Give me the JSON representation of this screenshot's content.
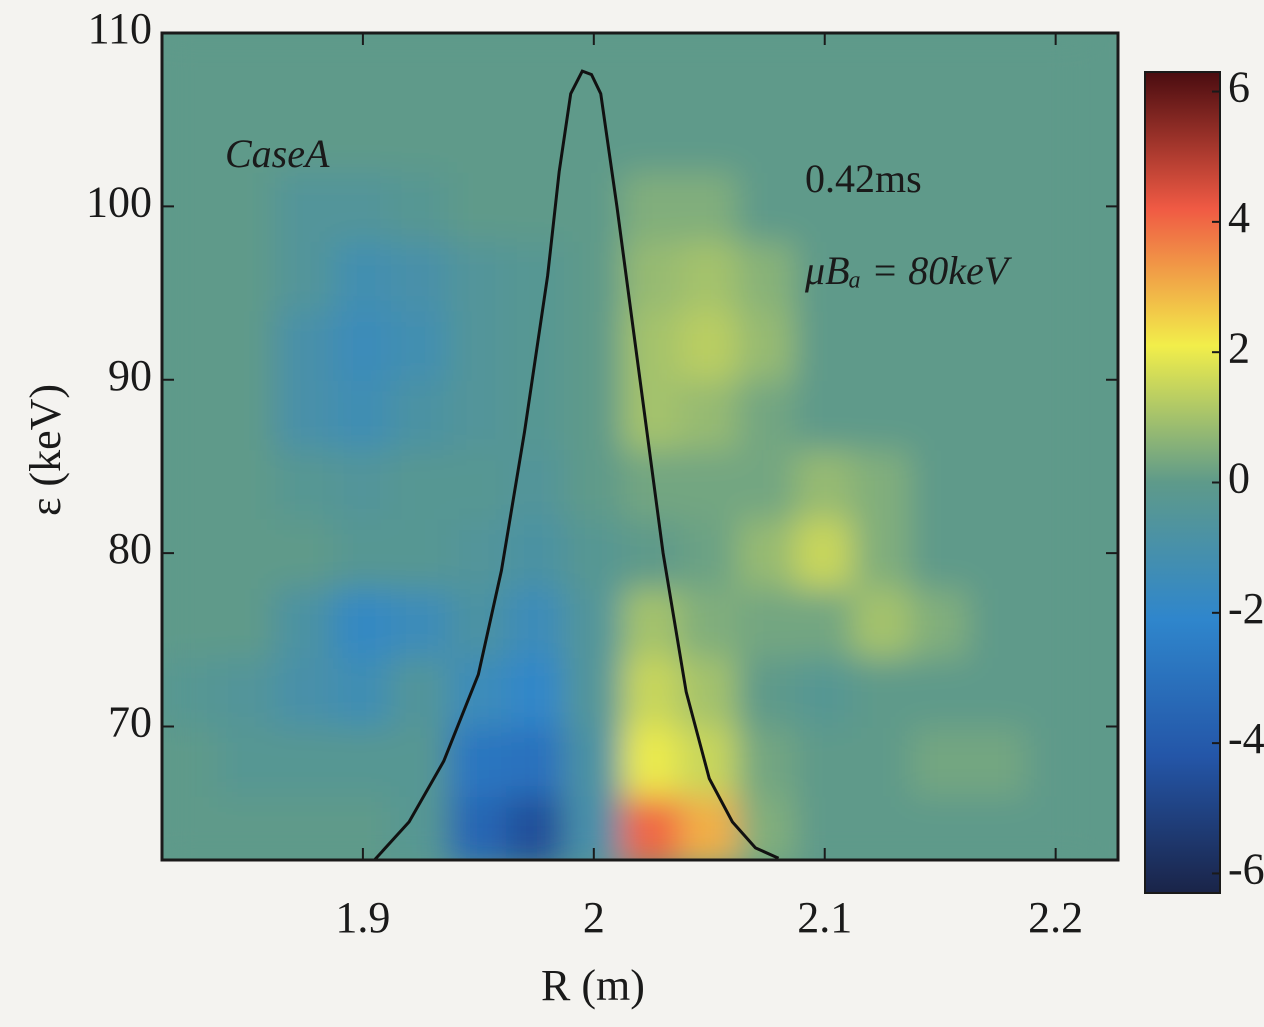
{
  "chart_data": {
    "type": "heatmap",
    "x_label": "R (m)",
    "y_label": "ε (keV)",
    "xlim": [
      1.813,
      2.227
    ],
    "ylim": [
      62.3,
      110
    ],
    "xticks": [
      1.9,
      2,
      2.1,
      2.2
    ],
    "yticks": [
      70,
      80,
      90,
      100,
      110
    ],
    "x": [
      1.825,
      1.85,
      1.875,
      1.9,
      1.925,
      1.95,
      1.975,
      2.0,
      2.025,
      2.05,
      2.075,
      2.1,
      2.125,
      2.15,
      2.175,
      2.2
    ],
    "y": [
      64,
      68,
      72,
      76,
      80,
      84,
      88,
      92,
      96,
      100,
      104,
      108
    ],
    "z": [
      [
        0,
        0,
        0,
        0,
        -0.3,
        -3.5,
        -4.5,
        -1,
        4,
        3,
        0.5,
        0,
        0,
        0,
        0,
        0
      ],
      [
        0,
        -0.3,
        -0.3,
        -0.3,
        -0.3,
        -2.8,
        -3,
        -0.8,
        2,
        1.5,
        0.3,
        0,
        0,
        0.3,
        0.3,
        0
      ],
      [
        -0.3,
        -0.5,
        -1,
        -1.3,
        -0.5,
        -1.5,
        -2,
        -0.5,
        1.5,
        1,
        0,
        -0.3,
        0,
        0,
        0,
        0
      ],
      [
        0,
        0,
        -0.8,
        -1.8,
        -1.5,
        -0.8,
        -1.5,
        -0.5,
        1,
        0.5,
        0.3,
        0.3,
        1,
        0.5,
        0,
        0
      ],
      [
        0,
        0,
        0,
        -0.3,
        -0.3,
        -0.5,
        -0.8,
        -0.3,
        0,
        0.2,
        0.8,
        1.5,
        0.5,
        0,
        0,
        0
      ],
      [
        0,
        0,
        -0.3,
        -0.5,
        -0.3,
        -0.3,
        -0.5,
        0,
        0.3,
        0.3,
        0.3,
        0.8,
        0.5,
        0,
        0,
        0
      ],
      [
        0,
        0,
        -1,
        -1.3,
        -0.8,
        -0.5,
        -0.3,
        0,
        1,
        0.8,
        0.3,
        0,
        0,
        0,
        0,
        0
      ],
      [
        0,
        0,
        -1,
        -1.5,
        -1.2,
        -0.5,
        -0.3,
        0,
        1,
        1.3,
        0.8,
        0,
        0,
        0,
        0,
        0
      ],
      [
        0,
        0,
        -0.5,
        -1.2,
        -1,
        -0.5,
        -0.3,
        0,
        0.8,
        1,
        0.6,
        0,
        0,
        0,
        0,
        0
      ],
      [
        0,
        0,
        -0.5,
        -0.5,
        -0.3,
        0,
        0,
        0,
        0.5,
        0.5,
        0,
        0,
        0,
        0,
        0,
        0
      ],
      [
        0,
        0,
        0,
        0,
        0,
        0,
        0,
        0,
        0,
        0,
        0,
        0,
        0,
        0,
        0,
        0
      ],
      [
        0,
        0,
        0,
        0,
        0,
        0,
        0,
        0,
        0,
        0,
        0,
        0,
        0,
        0,
        0,
        0
      ]
    ],
    "zlim": [
      -6.3,
      6.3
    ],
    "zticks": [
      -6,
      -4,
      -2,
      0,
      2,
      4,
      6
    ],
    "colormap": [
      "#1a2448",
      "#2456a8",
      "#2f86cc",
      "#5e9a8a",
      "#f2ee4a",
      "#f05a44",
      "#4a0c10"
    ],
    "line": {
      "color": "#111111",
      "x": [
        1.905,
        1.92,
        1.935,
        1.95,
        1.96,
        1.97,
        1.98,
        1.985,
        1.99,
        1.995,
        1.999,
        2.003,
        2.01,
        2.02,
        2.03,
        2.04,
        2.05,
        2.06,
        2.07,
        2.08
      ],
      "y": [
        62.3,
        64.5,
        68,
        73,
        79,
        87,
        96,
        102,
        106.5,
        107.8,
        107.6,
        106.5,
        100,
        90,
        80,
        72,
        67,
        64.5,
        63,
        62.4
      ]
    },
    "annotations": [
      "CaseA",
      "0.42ms",
      "μBₐ = 80keV"
    ]
  }
}
